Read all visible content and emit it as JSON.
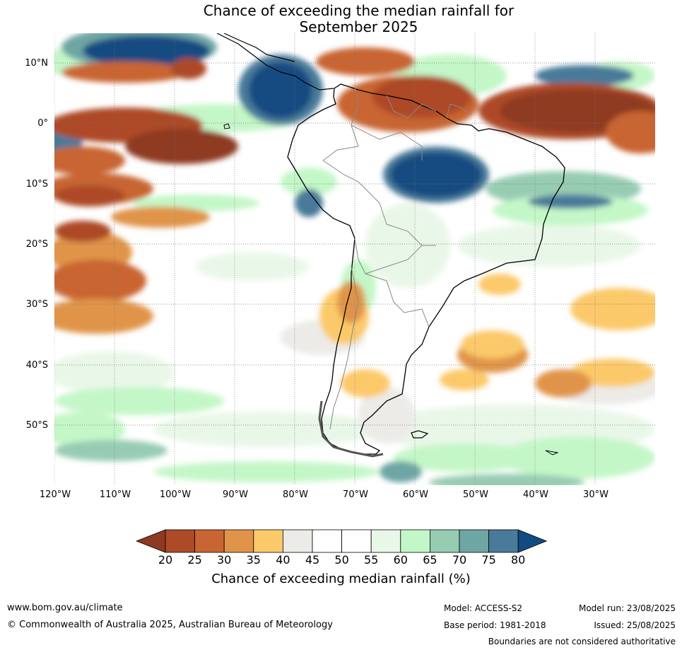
{
  "title": {
    "line1": "Chance of exceeding the median rainfall for",
    "line2": "September 2025"
  },
  "axes": {
    "lat_labels": [
      "10°N",
      "0°",
      "10°S",
      "20°S",
      "30°S",
      "40°S",
      "50°S"
    ],
    "lon_labels": [
      "120°W",
      "110°W",
      "100°W",
      "90°W",
      "80°W",
      "70°W",
      "60°W",
      "50°W",
      "40°W",
      "30°W"
    ],
    "lat_range": [
      -60,
      15
    ],
    "lon_range": [
      -120,
      -20
    ]
  },
  "colorbar": {
    "ticks": [
      "20",
      "25",
      "30",
      "35",
      "40",
      "45",
      "50",
      "55",
      "60",
      "65",
      "70",
      "75",
      "80"
    ],
    "colors": [
      "#8e3a22",
      "#ad4a28",
      "#c96532",
      "#e0944a",
      "#fcc96a",
      "#ecebe7",
      "#ffffff",
      "#ffffff",
      "#e9f7e8",
      "#c4f7c7",
      "#97ccb3",
      "#6ea6a4",
      "#4a7a99",
      "#124b81"
    ],
    "label": "Chance of exceeding median rainfall (%)"
  },
  "footer": {
    "url": "www.bom.gov.au/climate",
    "copyright": "© Commonwealth of Australia 2025, Australian Bureau of Meteorology",
    "model": "Model: ACCESS-S2",
    "base_period": "Base period: 1981-2018",
    "model_run": "Model run: 23/08/2025",
    "issued": "Issued: 25/08/2025",
    "disclaimer": "Boundaries are not considered authoritative"
  }
}
